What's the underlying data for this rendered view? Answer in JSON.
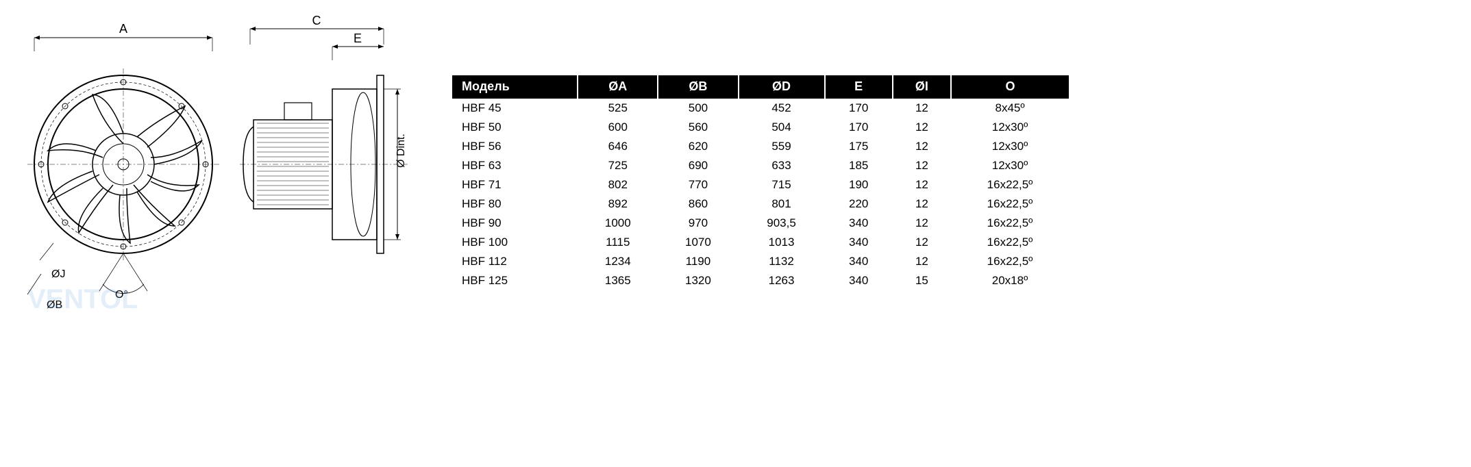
{
  "diagram": {
    "labels": {
      "A": "A",
      "B": "ØB",
      "C": "C",
      "D": "Ø Dint.",
      "E": "E",
      "J": "ØJ",
      "O": "O°"
    },
    "stroke_color": "#000000",
    "watermark_color": "#4a90d9",
    "watermark_text": "VENTOL"
  },
  "table": {
    "header_bg": "#000000",
    "header_fg": "#ffffff",
    "cell_fg": "#000000",
    "columns": [
      "Модель",
      "ØA",
      "ØB",
      "ØD",
      "E",
      "ØI",
      "O"
    ],
    "rows": [
      [
        "HBF 45",
        "525",
        "500",
        "452",
        "170",
        "12",
        "8x45º"
      ],
      [
        "HBF 50",
        "600",
        "560",
        "504",
        "170",
        "12",
        "12x30º"
      ],
      [
        "HBF 56",
        "646",
        "620",
        "559",
        "175",
        "12",
        "12x30º"
      ],
      [
        "HBF 63",
        "725",
        "690",
        "633",
        "185",
        "12",
        "12x30º"
      ],
      [
        "HBF 71",
        "802",
        "770",
        "715",
        "190",
        "12",
        "16x22,5º"
      ],
      [
        "HBF 80",
        "892",
        "860",
        "801",
        "220",
        "12",
        "16x22,5º"
      ],
      [
        "HBF 90",
        "1000",
        "970",
        "903,5",
        "340",
        "12",
        "16x22,5º"
      ],
      [
        "HBF 100",
        "1115",
        "1070",
        "1013",
        "340",
        "12",
        "16x22,5º"
      ],
      [
        "HBF 112",
        "1234",
        "1190",
        "1132",
        "340",
        "12",
        "16x22,5º"
      ],
      [
        "HBF 125",
        "1365",
        "1320",
        "1263",
        "340",
        "15",
        "20x18º"
      ]
    ]
  }
}
